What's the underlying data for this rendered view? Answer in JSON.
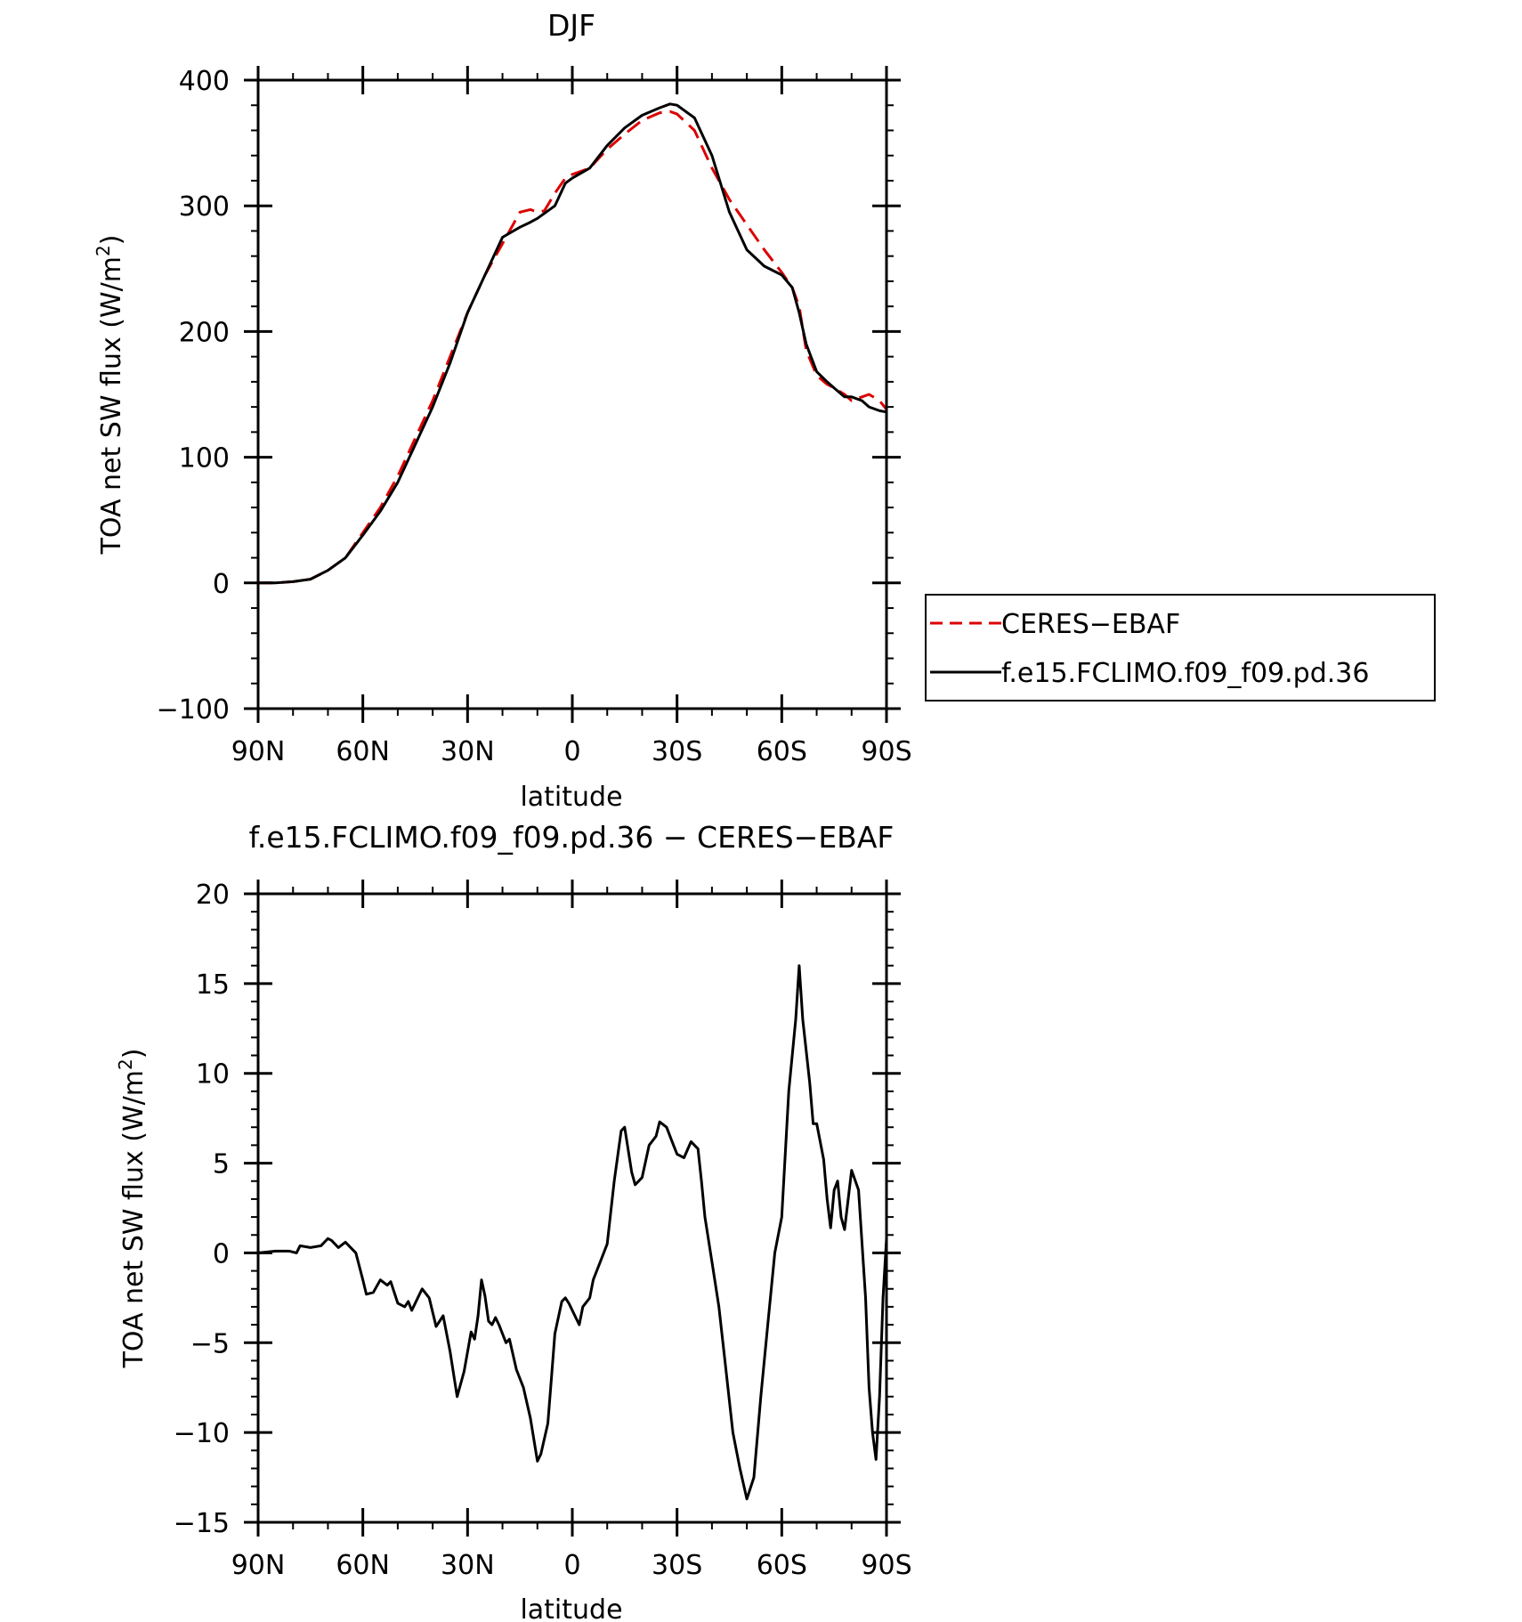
{
  "chart_data": [
    {
      "type": "line",
      "title": "DJF",
      "xlabel": "latitude",
      "ylabel": "TOA net SW flux (W/m²)",
      "ylabel_parts": {
        "main": "TOA net SW flux (W/m",
        "sup": "2",
        "end": ")"
      },
      "xlim": [
        -90,
        90
      ],
      "ylim": [
        -100,
        400
      ],
      "x_tick_positions": [
        -90,
        -60,
        -30,
        0,
        30,
        60,
        90
      ],
      "x_tick_labels": [
        "90N",
        "60N",
        "30N",
        "0",
        "30S",
        "60S",
        "90S"
      ],
      "y_ticks": [
        -100,
        0,
        100,
        200,
        300,
        400
      ],
      "y_tick_labels": [
        "−100",
        "0",
        "100",
        "200",
        "300",
        "400"
      ],
      "legend_position": "right-middle",
      "series": [
        {
          "name": "CERES−EBAF",
          "color": "#dd0000",
          "dashed": true,
          "x": [
            -90,
            -85,
            -80,
            -75,
            -70,
            -65,
            -60,
            -55,
            -50,
            -45,
            -40,
            -35,
            -30,
            -25,
            -20,
            -15,
            -12,
            -10,
            -8,
            -5,
            -2,
            0,
            5,
            10,
            15,
            20,
            25,
            28,
            30,
            35,
            40,
            45,
            50,
            55,
            60,
            63,
            65,
            67,
            70,
            73,
            75,
            78,
            80,
            83,
            85,
            88,
            90
          ],
          "y": [
            0,
            0,
            1,
            3,
            10,
            20,
            40,
            60,
            85,
            115,
            145,
            180,
            215,
            245,
            270,
            295,
            297,
            295,
            296,
            310,
            322,
            325,
            330,
            345,
            357,
            368,
            374,
            375,
            373,
            360,
            330,
            305,
            285,
            265,
            247,
            235,
            220,
            185,
            165,
            158,
            155,
            150,
            145,
            148,
            150,
            145,
            138
          ]
        },
        {
          "name": "f.e15.FCLIMO.f09_f09.pd.36",
          "color": "#000000",
          "dashed": false,
          "x": [
            -90,
            -85,
            -80,
            -75,
            -70,
            -65,
            -60,
            -55,
            -50,
            -45,
            -40,
            -35,
            -30,
            -25,
            -20,
            -15,
            -12,
            -10,
            -5,
            -2,
            0,
            5,
            10,
            15,
            20,
            25,
            28,
            30,
            35,
            40,
            45,
            50,
            55,
            60,
            63,
            65,
            67,
            70,
            73,
            75,
            78,
            80,
            83,
            85,
            88,
            90
          ],
          "y": [
            0,
            0,
            1,
            3,
            10,
            20,
            38,
            57,
            80,
            110,
            140,
            175,
            215,
            245,
            275,
            283,
            287,
            290,
            300,
            318,
            322,
            330,
            348,
            362,
            372,
            378,
            381,
            380,
            370,
            340,
            295,
            265,
            252,
            245,
            235,
            215,
            190,
            168,
            160,
            155,
            148,
            148,
            145,
            140,
            137,
            136
          ]
        }
      ]
    },
    {
      "type": "line",
      "title": "f.e15.FCLIMO.f09_f09.pd.36 − CERES−EBAF",
      "xlabel": "latitude",
      "ylabel": "TOA net SW flux (W/m²)",
      "ylabel_parts": {
        "main": "TOA net SW flux (W/m",
        "sup": "2",
        "end": ")"
      },
      "xlim": [
        -90,
        90
      ],
      "ylim": [
        -15,
        20
      ],
      "x_tick_positions": [
        -90,
        -60,
        -30,
        0,
        30,
        60,
        90
      ],
      "x_tick_labels": [
        "90N",
        "60N",
        "30N",
        "0",
        "30S",
        "60S",
        "90S"
      ],
      "y_ticks": [
        -15,
        -10,
        -5,
        0,
        5,
        10,
        15,
        20
      ],
      "y_tick_labels": [
        "−15",
        "−10",
        "−5",
        "0",
        "5",
        "10",
        "15",
        "20"
      ],
      "series": [
        {
          "name": "",
          "color": "#000000",
          "dashed": false,
          "x": [
            -90,
            -85,
            -81,
            -79,
            -78,
            -75,
            -72,
            -70,
            -69,
            -67,
            -65,
            -62,
            -60,
            -59,
            -57,
            -55,
            -53,
            -52,
            -50,
            -48,
            -47,
            -46,
            -44,
            -43,
            -41,
            -39,
            -37,
            -35,
            -33,
            -31,
            -29,
            -28,
            -27,
            -26,
            -25,
            -24,
            -23,
            -22,
            -21,
            -19,
            -18,
            -16,
            -14,
            -12,
            -10,
            -9,
            -7,
            -6,
            -5,
            -3,
            -2,
            -1,
            0,
            2,
            3,
            5,
            6,
            8,
            10,
            12,
            14,
            15,
            17,
            18,
            20,
            22,
            24,
            25,
            27,
            29,
            30,
            32,
            34,
            36,
            37,
            38,
            40,
            42,
            44,
            46,
            48,
            50,
            52,
            54,
            56,
            58,
            60,
            62,
            64,
            65,
            66,
            68,
            69,
            70,
            72,
            73,
            74,
            75,
            76,
            77,
            78,
            80,
            82,
            84,
            85,
            86,
            87,
            88,
            89,
            90
          ],
          "y": [
            0,
            0.1,
            0.1,
            0,
            0.4,
            0.3,
            0.4,
            0.8,
            0.7,
            0.3,
            0.6,
            0,
            -1.5,
            -2.3,
            -2.2,
            -1.5,
            -1.8,
            -1.6,
            -2.8,
            -3,
            -2.7,
            -3.2,
            -2.4,
            -2,
            -2.5,
            -4.1,
            -3.5,
            -5.5,
            -8,
            -6.6,
            -4.4,
            -4.8,
            -3.5,
            -1.5,
            -2.4,
            -3.8,
            -4,
            -3.6,
            -4,
            -5,
            -4.8,
            -6.5,
            -7.5,
            -9.2,
            -11.6,
            -11.2,
            -9.5,
            -7,
            -4.5,
            -2.7,
            -2.5,
            -2.8,
            -3.2,
            -4,
            -3,
            -2.5,
            -1.5,
            -0.5,
            0.5,
            4,
            6.8,
            7.0,
            4.5,
            3.8,
            4.2,
            6,
            6.5,
            7.3,
            7.0,
            6,
            5.5,
            5.3,
            6.2,
            5.8,
            4,
            2,
            -0.5,
            -3,
            -6.5,
            -10,
            -12,
            -13.7,
            -12.5,
            -8,
            -4,
            0,
            2,
            9,
            13,
            16,
            13,
            9.5,
            7.2,
            7.2,
            5.2,
            3,
            1.4,
            3.5,
            4,
            2,
            1.3,
            4.6,
            3.5,
            -2.5,
            -7.5,
            -10,
            -11.5,
            -8,
            -2.5,
            0.8
          ]
        }
      ]
    }
  ],
  "legend": {
    "items": [
      {
        "label": "CERES−EBAF",
        "color": "#dd0000",
        "dashed": true
      },
      {
        "label": "f.e15.FCLIMO.f09_f09.pd.36",
        "color": "#000000",
        "dashed": false
      }
    ]
  }
}
